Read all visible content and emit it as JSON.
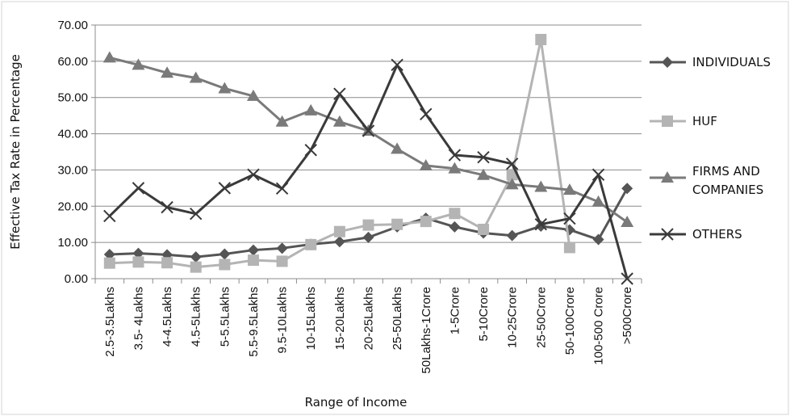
{
  "chart_data": {
    "type": "line",
    "xlabel": "Range of Income",
    "ylabel": "Effective Tax Rate in Percentage",
    "ylim": [
      0,
      70
    ],
    "yticks": [
      "0.00",
      "10.00",
      "20.00",
      "30.00",
      "40.00",
      "50.00",
      "60.00",
      "70.00"
    ],
    "grid": true,
    "legend_position": "right",
    "categories": [
      "2.5-3.5Lakhs",
      "3.5- 4Lakhs",
      "4-4.5Lakhs",
      "4.5-5Lakhs",
      "5-5.5Lakhs",
      "5.5-9.5Lakhs",
      "9.5-10Lakhs",
      "10-15Lakhs",
      "15-20Lakhs",
      "20-25Lakhs",
      "25-50Lakhs",
      "50Lakhs-1Crore",
      "1-5Crore",
      "5-10Crore",
      "10-25Crore",
      "25-50Crore",
      "50-100Crore",
      "100-500 Crore",
      ">500Crore"
    ],
    "series": [
      {
        "name": "INDIVIDUALS",
        "color": "#555555",
        "marker": "diamond",
        "values": [
          6.7,
          7.0,
          6.6,
          6.0,
          6.8,
          7.9,
          8.4,
          9.5,
          10.2,
          11.4,
          14.3,
          16.7,
          14.3,
          12.6,
          11.9,
          14.5,
          13.5,
          10.8,
          24.9
        ]
      },
      {
        "name": "HUF",
        "color": "#b4b4b4",
        "marker": "square",
        "values": [
          4.3,
          4.6,
          4.4,
          3.2,
          3.9,
          5.1,
          4.8,
          9.4,
          13.0,
          14.8,
          15.0,
          15.8,
          18.0,
          13.6,
          28.7,
          66.0,
          8.6,
          null,
          null
        ]
      },
      {
        "name": "FIRMS AND COMPANIES",
        "color": "#7a7a7a",
        "marker": "triangle",
        "values": [
          61.0,
          59.0,
          56.8,
          55.4,
          52.5,
          50.4,
          43.3,
          46.4,
          43.3,
          40.8,
          35.8,
          31.2,
          30.4,
          28.6,
          26.0,
          25.3,
          24.5,
          21.2,
          15.6
        ]
      },
      {
        "name": "OTHERS",
        "color": "#3a3a3a",
        "marker": "x",
        "values": [
          17.3,
          25.0,
          19.7,
          17.9,
          25.0,
          28.7,
          24.9,
          35.5,
          51.0,
          40.8,
          59.0,
          45.4,
          34.1,
          33.5,
          31.7,
          15.0,
          16.6,
          28.7,
          0.0
        ]
      }
    ]
  }
}
